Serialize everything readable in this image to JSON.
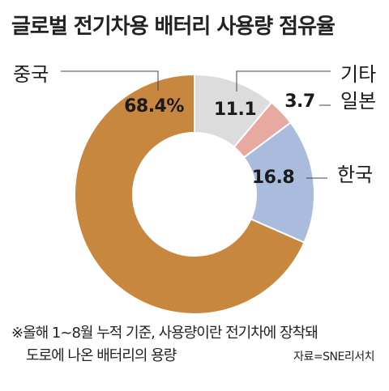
{
  "chart_data": {
    "type": "pie",
    "title": "글로벌 전기차용 배터리 사용량 점유율",
    "slices": [
      {
        "label": "기타",
        "value": 11.1,
        "value_label": "11.1",
        "color": "#dcdcdc"
      },
      {
        "label": "일본",
        "value": 3.7,
        "value_label": "3.7",
        "color": "#e8a9a1"
      },
      {
        "label": "한국",
        "value": 16.8,
        "value_label": "16.8",
        "color": "#a9bcdd"
      },
      {
        "label": "중국",
        "value": 68.4,
        "value_label": "68.4%",
        "color": "#c8873f"
      }
    ],
    "donut": true
  },
  "footnote": {
    "line1": "※올해 1~8월 누적 기준, 사용량이란 전기차에 장착돼",
    "line2": "도로에 나온 배터리의 용량"
  },
  "source": "자료=SNE리서치"
}
